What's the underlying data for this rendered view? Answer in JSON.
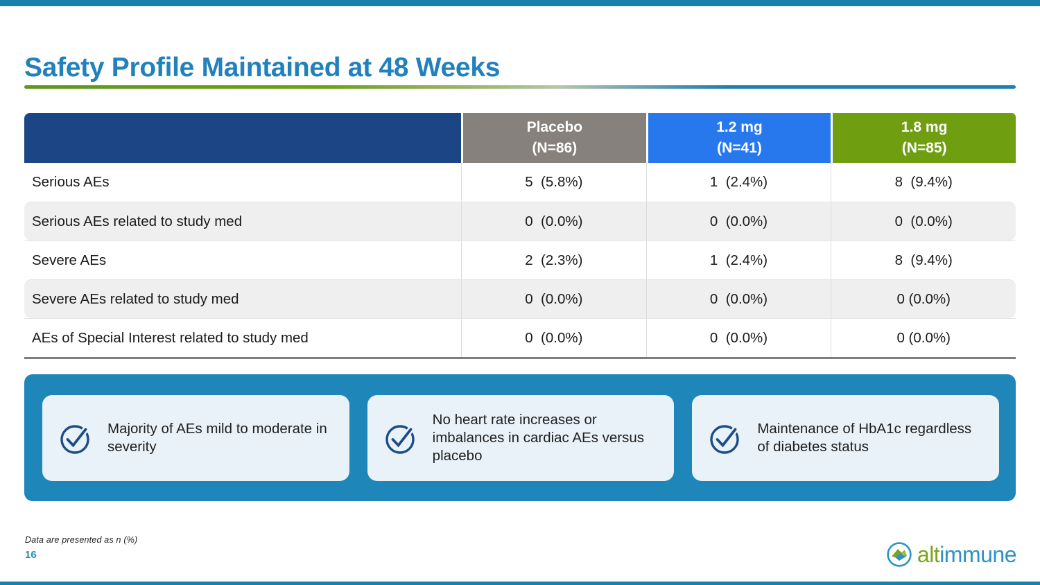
{
  "slide": {
    "title": "Safety Profile Maintained at 48 Weeks",
    "footnote": "Data are presented as n (%)",
    "page_number": "16"
  },
  "colors": {
    "top_bottom_bar_teal": "#1a81ad",
    "title_blue": "#2181bc",
    "rule_green": "#6f9e14",
    "rule_teal": "#1d80ae",
    "header_navy": "#1c4586",
    "header_placebo_gray": "#86817d",
    "header_dose12_blue": "#2678ec",
    "header_dose18_green": "#6f9e10",
    "callout_panel_blue": "#1e86b8",
    "card_light_blue": "#e9f2f9",
    "check_navy": "#1c4c86",
    "row_stripe_gray": "#efeff0"
  },
  "table": {
    "header": [
      {
        "dose": "Placebo",
        "n": "(N=86)",
        "color": "#86817d"
      },
      {
        "dose": "1.2 mg",
        "n": "(N=41)",
        "color": "#2678ec"
      },
      {
        "dose": "1.8 mg",
        "n": "(N=85)",
        "color": "#6f9e10"
      }
    ],
    "rows": [
      {
        "label": "Serious AEs",
        "values": [
          "5  (5.8%)",
          "1  (2.4%)",
          "8  (9.4%)"
        ]
      },
      {
        "label": "Serious AEs related to study med",
        "values": [
          "0  (0.0%)",
          "0  (0.0%)",
          "0  (0.0%)"
        ]
      },
      {
        "label": "Severe AEs",
        "values": [
          "2  (2.3%)",
          "1  (2.4%)",
          "8  (9.4%)"
        ]
      },
      {
        "label": "Severe AEs related to study med",
        "values": [
          "0  (0.0%)",
          "0  (0.0%)",
          "0 (0.0%)"
        ]
      },
      {
        "label": "AEs of Special Interest related to study med",
        "values": [
          "0  (0.0%)",
          "0  (0.0%)",
          "0 (0.0%)"
        ]
      }
    ]
  },
  "callouts": [
    {
      "icon": "check-circle-icon",
      "text": "Majority of AEs mild to moderate in severity"
    },
    {
      "icon": "check-circle-icon",
      "text": "No heart rate increases or imbalances in cardiac AEs versus placebo"
    },
    {
      "icon": "check-circle-icon",
      "text": "Maintenance of HbA1c regardless of diabetes status"
    }
  ],
  "logo": {
    "part_green": "alt",
    "part_blue": "immune",
    "green": "#7ba517",
    "blue": "#2d92c3"
  }
}
